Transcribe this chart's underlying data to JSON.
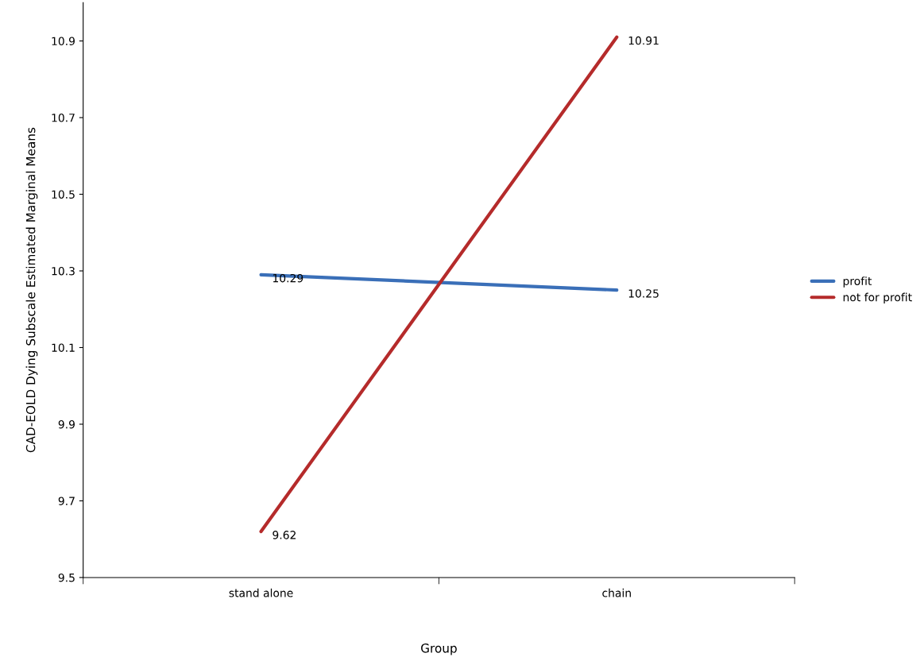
{
  "chart_data": {
    "type": "line",
    "xlabel": "Group",
    "ylabel": "CAD-EOLD Dying Subscale Estimated Marginal Means",
    "categories": [
      "stand alone",
      "chain"
    ],
    "series": [
      {
        "name": "profit",
        "color": "#3a6fb8",
        "values": [
          10.29,
          10.25
        ]
      },
      {
        "name": "not for profit",
        "color": "#b52b2b",
        "values": [
          9.62,
          10.91
        ]
      }
    ],
    "ylim": [
      9.5,
      11.0
    ],
    "yticks": [
      9.5,
      9.7,
      9.9,
      10.1,
      10.3,
      10.5,
      10.7,
      10.9
    ],
    "data_labels": true,
    "legend": "right",
    "grid": false,
    "marker": "none",
    "line_style": "solid"
  }
}
